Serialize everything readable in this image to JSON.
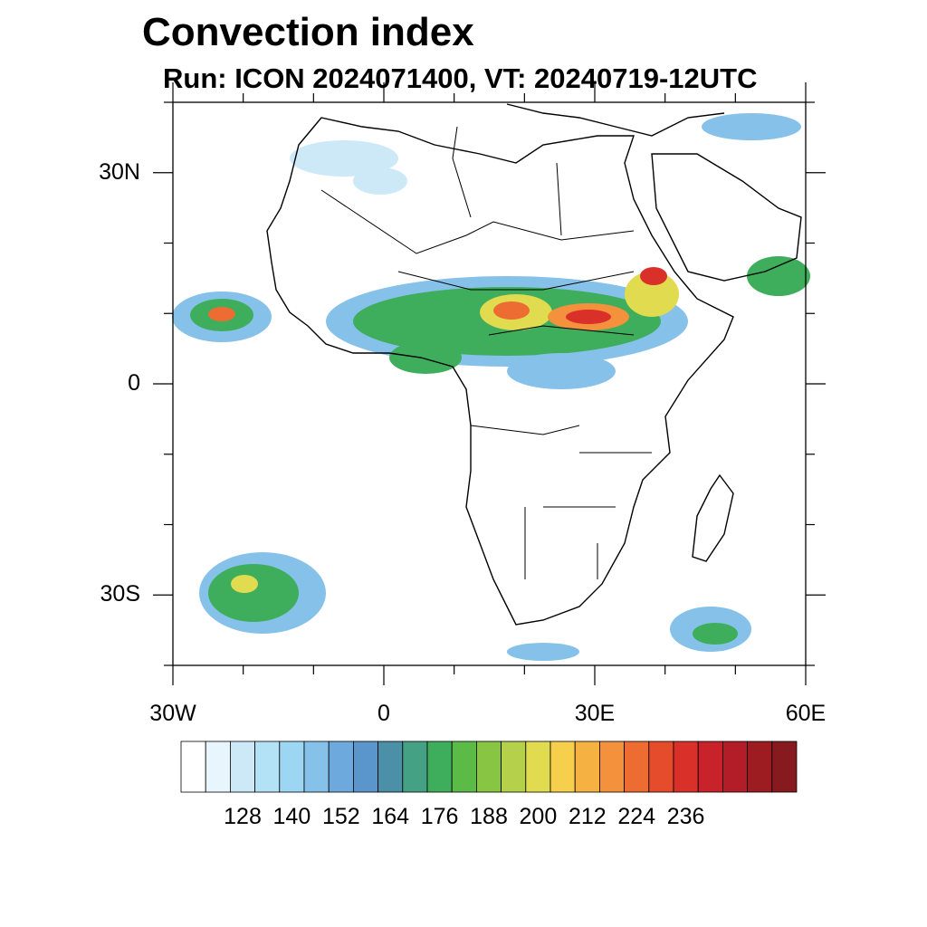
{
  "title": "Convection index",
  "subtitle": "Run: ICON 2024071400,  VT: 20240719-12UTC",
  "map": {
    "projection": "cylindrical equidistant",
    "lon_range": [
      -30,
      60
    ],
    "lat_range": [
      -40,
      40
    ],
    "lat_labels": [
      {
        "lat": 30,
        "text": "30N"
      },
      {
        "lat": 0,
        "text": "0"
      },
      {
        "lat": -30,
        "text": "30S"
      }
    ],
    "lon_labels": [
      {
        "lon": -30,
        "text": "30W"
      },
      {
        "lon": 0,
        "text": "0"
      },
      {
        "lon": 30,
        "text": "30E"
      },
      {
        "lon": 60,
        "text": "60E"
      }
    ]
  },
  "colorbar": {
    "colors": [
      "#ffffff",
      "#e8f5fc",
      "#cde9f8",
      "#b3e1f6",
      "#9dd6f3",
      "#86c1ea",
      "#6ea9de",
      "#5a96cc",
      "#4b90a6",
      "#45a183",
      "#3fae5c",
      "#5cba47",
      "#88c542",
      "#b5d04b",
      "#e0db4f",
      "#f6cf4d",
      "#f6b143",
      "#f3913c",
      "#ec6c32",
      "#e44c2c",
      "#d9302a",
      "#c8232a",
      "#b31d27",
      "#9d1c22",
      "#871a1e"
    ],
    "tick_labels": [
      "128",
      "140",
      "152",
      "164",
      "176",
      "188",
      "200",
      "212",
      "224",
      "236"
    ]
  },
  "legend_colors": {
    "blue": "#86c1ea",
    "green": "#3fae5c",
    "yellow": "#e0db4f",
    "orange": "#f3913c",
    "red": "#d9302a",
    "coast": "#000000"
  }
}
